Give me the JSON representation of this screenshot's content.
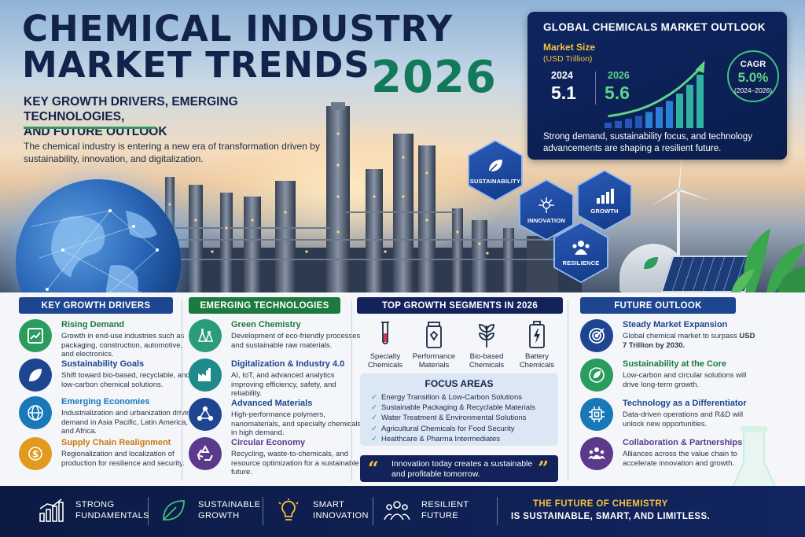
{
  "hero": {
    "title_line1": "CHEMICAL INDUSTRY",
    "title_line2": "MARKET TRENDS",
    "year": "2026",
    "subtitle_line1": "KEY GROWTH DRIVERS, EMERGING TECHNOLOGIES,",
    "subtitle_line2": "AND FUTURE OUTLOOK",
    "intro": "The chemical industry is entering a new era of transformation driven by sustainability, innovation, and digitalization."
  },
  "market": {
    "title": "GLOBAL CHEMICALS MARKET OUTLOOK",
    "size_label": "Market Size",
    "unit": "(USD Trillion)",
    "year1": "2024",
    "value1": "5.1",
    "year2": "2026",
    "value2": "5.6",
    "cagr_label": "CAGR",
    "cagr_value": "5.0%",
    "cagr_period": "(2024–2026)",
    "description": "Strong demand, sustainability focus, and technology advancements are shaping a resilient future.",
    "bars": [
      1,
      1.3,
      1.7,
      2.2,
      2.9,
      3.8,
      4.9,
      6.2,
      7.8,
      9.6
    ],
    "accent": "#5fd38a"
  },
  "badges": {
    "sustainability": "SUSTAINABILITY",
    "innovation": "INNOVATION",
    "growth": "GROWTH",
    "resilience": "RESILIENCE"
  },
  "drivers": {
    "heading": "KEY GROWTH DRIVERS",
    "items": [
      {
        "title": "Rising Demand",
        "desc": "Growth in end-use industries such as packaging, construction, automotive, and electronics."
      },
      {
        "title": "Sustainability Goals",
        "desc": "Shift toward bio-based, recyclable, and low-carbon chemical solutions."
      },
      {
        "title": "Emerging Economies",
        "desc": "Industrialization and urbanization driving demand in Asia Pacific, Latin America, and Africa."
      },
      {
        "title": "Supply Chain Realignment",
        "desc": "Regionalization and localization of production for resilience and security."
      }
    ]
  },
  "tech": {
    "heading": "EMERGING TECHNOLOGIES",
    "items": [
      {
        "title": "Green Chemistry",
        "desc": "Development of eco-friendly processes and sustainable raw materials."
      },
      {
        "title": "Digitalization & Industry 4.0",
        "desc": "AI, IoT, and advanced analytics improving efficiency, safety, and reliability."
      },
      {
        "title": "Advanced Materials",
        "desc": "High-performance polymers, nanomaterials, and specialty chemicals in high demand."
      },
      {
        "title": "Circular Economy",
        "desc": "Recycling, waste-to-chemicals, and resource optimization for a sustainable future."
      }
    ]
  },
  "segments": {
    "heading": "TOP GROWTH SEGMENTS IN 2026",
    "items": [
      {
        "line1": "Specialty",
        "line2": "Chemicals"
      },
      {
        "line1": "Performance",
        "line2": "Materials"
      },
      {
        "line1": "Bio-based",
        "line2": "Chemicals"
      },
      {
        "line1": "Battery",
        "line2": "Chemicals"
      }
    ],
    "focus_heading": "FOCUS AREAS",
    "focus": [
      "Energy Transition & Low-Carbon Solutions",
      "Sustainable Packaging & Recyclable Materials",
      "Water Treatment & Environmental Solutions",
      "Agricultural Chemicals for Food Security",
      "Healthcare & Pharma Intermediates"
    ],
    "quote": "Innovation today creates a sustainable and profitable tomorrow."
  },
  "outlook": {
    "heading": "FUTURE OUTLOOK",
    "items": [
      {
        "title": "Steady Market Expansion",
        "desc": "Global chemical market to surpass",
        "desc_bold": "USD 7 Trillion by 2030."
      },
      {
        "title": "Sustainability at the Core",
        "desc": "Low-carbon and circular solutions will drive long-term growth.",
        "desc_bold": ""
      },
      {
        "title": "Technology as a Differentiator",
        "desc": "Data-driven operations and R&D will unlock new opportunities.",
        "desc_bold": ""
      },
      {
        "title": "Collaboration & Partnerships",
        "desc": "Alliances across the value chain to accelerate innovation and growth.",
        "desc_bold": ""
      }
    ]
  },
  "footer": {
    "items": [
      {
        "line1": "STRONG",
        "line2": "FUNDAMENTALS"
      },
      {
        "line1": "SUSTAINABLE",
        "line2": "GROWTH"
      },
      {
        "line1": "SMART",
        "line2": "INNOVATION"
      },
      {
        "line1": "RESILIENT",
        "line2": "FUTURE"
      }
    ],
    "tagline1": "THE FUTURE OF CHEMISTRY",
    "tagline2": "IS SUSTAINABLE, SMART, AND LIMITLESS."
  },
  "colors": {
    "navy": "#13224a",
    "green": "#2a9c5e",
    "blue": "#1d5bb8",
    "purple": "#5b3a8c",
    "gold": "#f5c33b"
  }
}
